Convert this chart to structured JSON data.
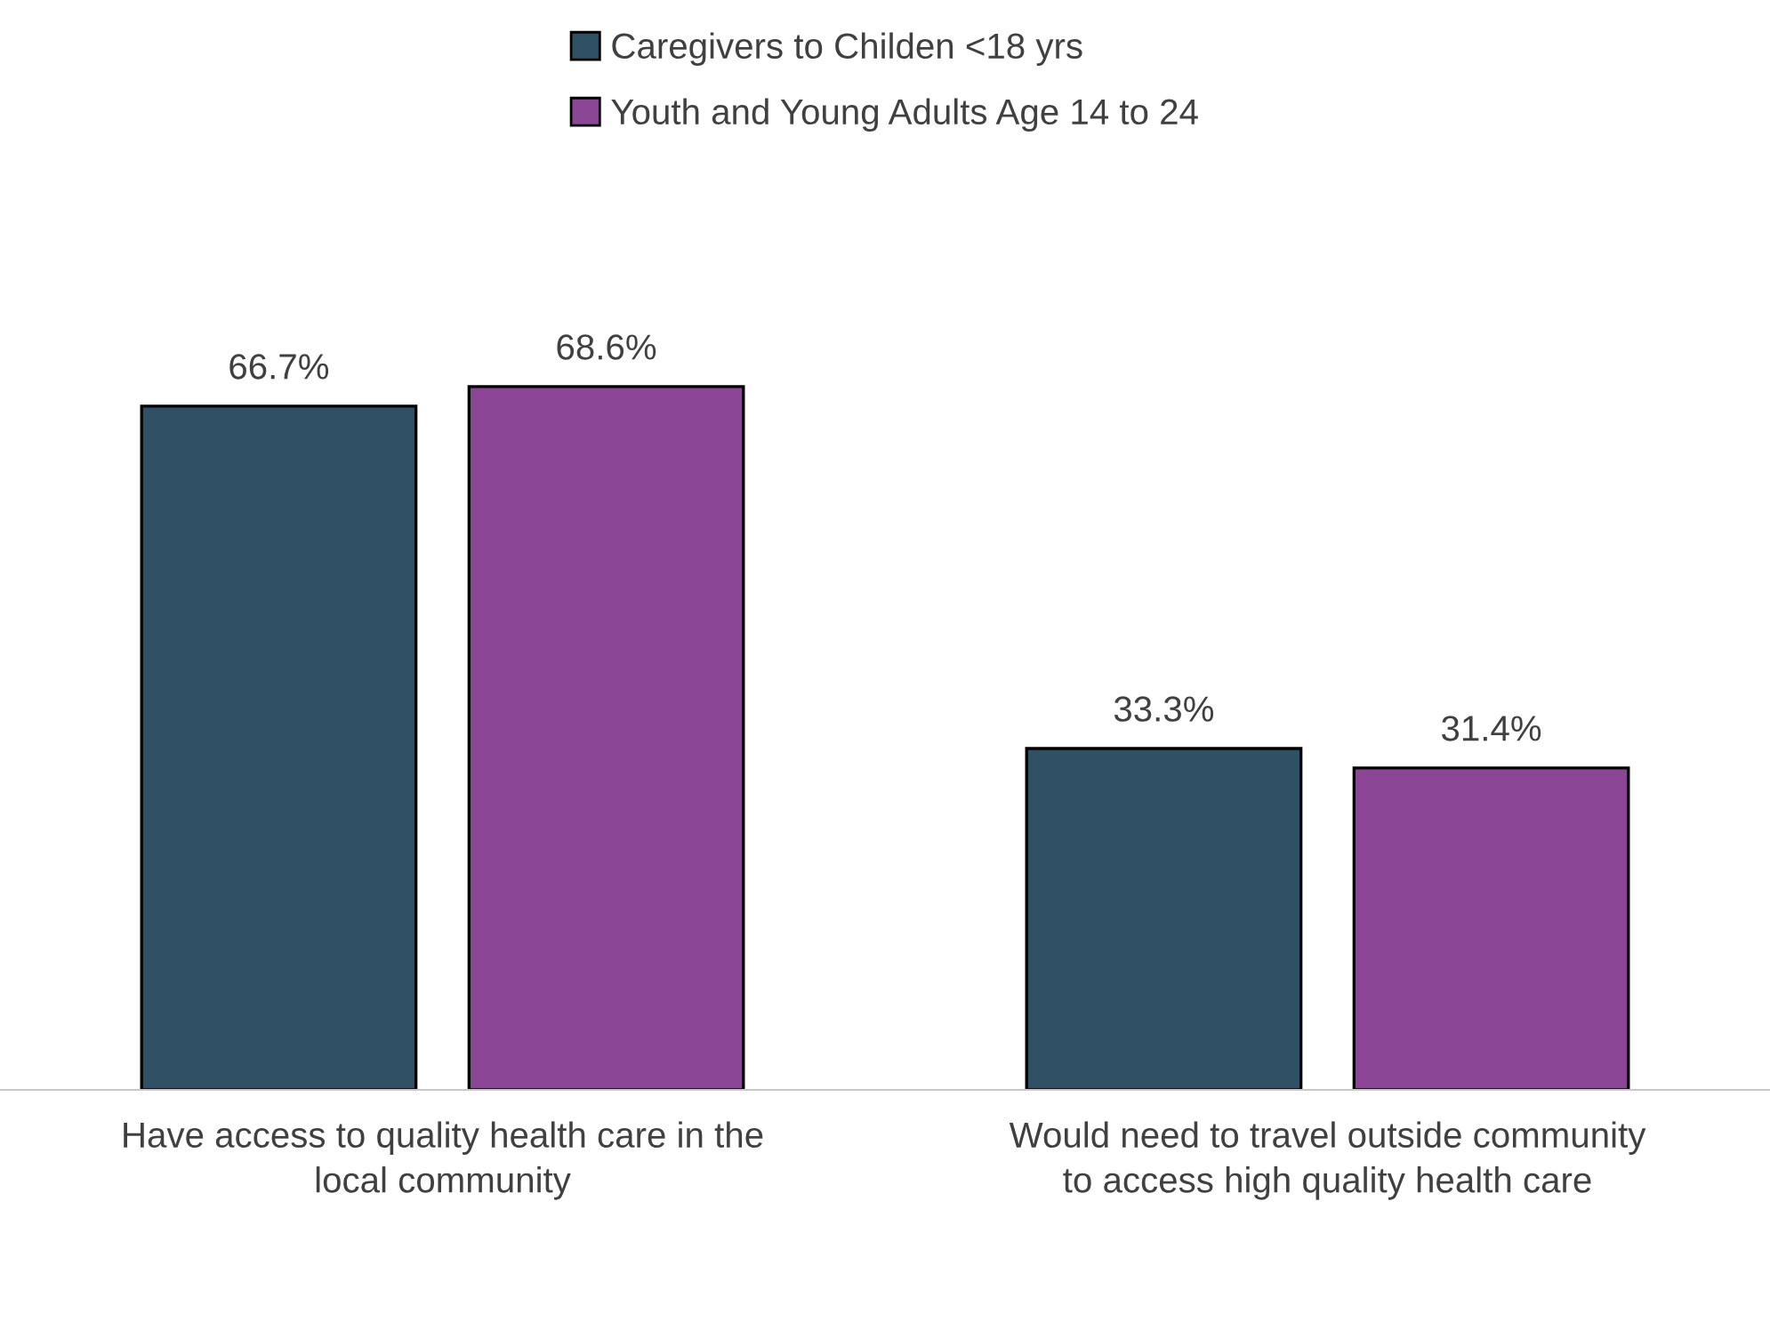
{
  "chart_data": {
    "type": "bar",
    "categories": [
      "Have access to quality health care in the local community",
      "Would need to travel outside community to access high quality health care"
    ],
    "series": [
      {
        "name": "Caregivers to Childen <18 yrs",
        "color": "#2f5065",
        "values": [
          66.7,
          33.3
        ],
        "value_labels": [
          "66.7%",
          "33.3%"
        ]
      },
      {
        "name": "Youth and Young Adults Age 14 to 24",
        "color": "#8b4796",
        "values": [
          68.6,
          31.4
        ],
        "value_labels": [
          "68.6%",
          "31.4%"
        ]
      }
    ],
    "legend": "top",
    "grid": false
  }
}
